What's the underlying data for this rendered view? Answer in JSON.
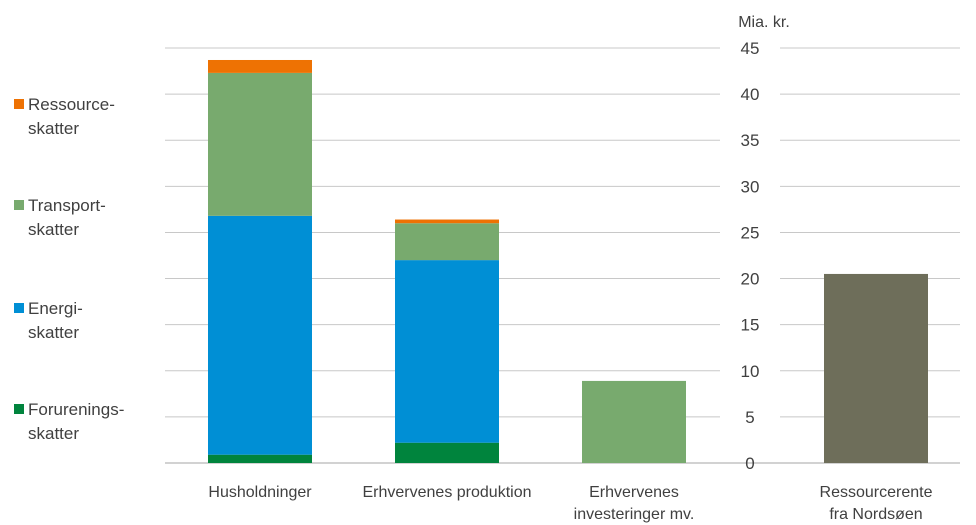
{
  "chart_data": {
    "type": "bar",
    "ylabel": "Mia. kr.",
    "ylim": [
      0,
      45
    ],
    "yticks": [
      0,
      5,
      10,
      15,
      20,
      25,
      30,
      35,
      40,
      45
    ],
    "grid": true,
    "legend_position": "left",
    "categories": [
      [
        "Husholdninger"
      ],
      [
        "Erhvervenes produktion"
      ],
      [
        "Erhvervenes",
        "investeringer mv."
      ],
      [
        "Ressourcerente",
        "fra Nordsøen"
      ]
    ],
    "series": [
      {
        "name": "Forurenings-skatter",
        "label_lines": [
          "Forurenings-",
          "skatter"
        ],
        "color": "#00843d",
        "values": [
          0.9,
          2.2,
          0,
          0
        ]
      },
      {
        "name": "Energi-skatter",
        "label_lines": [
          "Energi-",
          "skatter"
        ],
        "color": "#008fd5",
        "values": [
          25.9,
          19.8,
          0,
          0
        ]
      },
      {
        "name": "Transport-skatter",
        "label_lines": [
          "Transport-",
          "skatter"
        ],
        "color": "#78aa6e",
        "values": [
          15.5,
          4.0,
          8.9,
          0
        ]
      },
      {
        "name": "Ressource-skatter",
        "label_lines": [
          "Ressource-",
          "skatter"
        ],
        "color": "#ee7203",
        "values": [
          1.4,
          0.4,
          0,
          0
        ]
      },
      {
        "name": "",
        "color": "#6e6e5a",
        "values": [
          0,
          0,
          0,
          20.5
        ]
      }
    ]
  }
}
